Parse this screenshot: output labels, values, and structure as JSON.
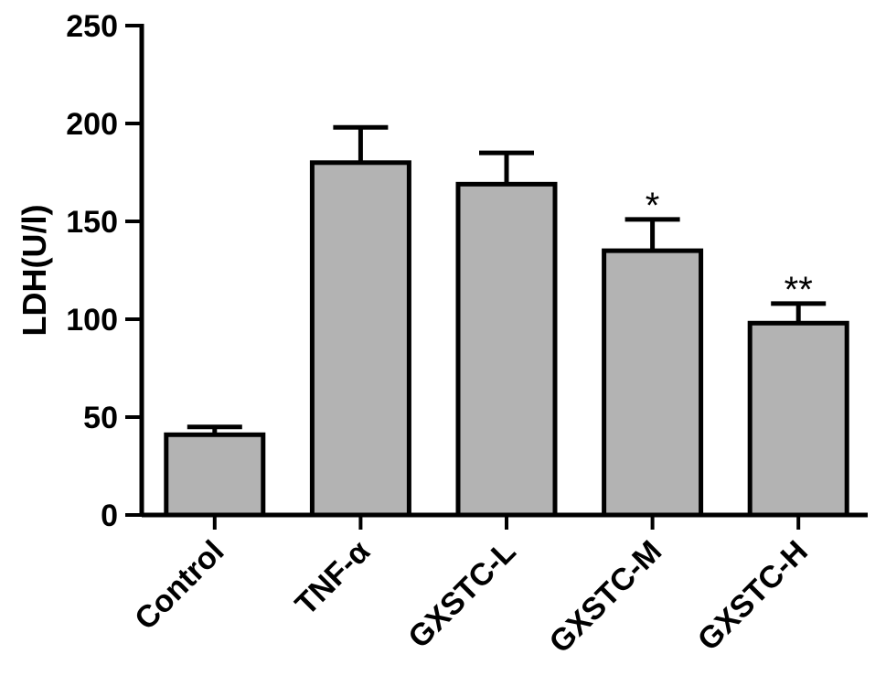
{
  "chart_data": {
    "type": "bar",
    "title": "",
    "xlabel": "",
    "ylabel": "LDH(U/l)",
    "ylim": [
      0,
      250
    ],
    "yticks": [
      0,
      50,
      100,
      150,
      200,
      250
    ],
    "categories": [
      "Control",
      "TNF-α",
      "GXSTC-L",
      "GXSTC-M",
      "GXSTC-H"
    ],
    "values": [
      41,
      180,
      169,
      135,
      98
    ],
    "error_upper": [
      45,
      198,
      185,
      151,
      108
    ],
    "annotations": [
      "",
      "",
      "",
      "*",
      "**"
    ],
    "grid": false,
    "legend": "none"
  },
  "colors": {
    "bar_fill": "#b3b3b3",
    "stroke": "#000000",
    "background": "#ffffff"
  }
}
